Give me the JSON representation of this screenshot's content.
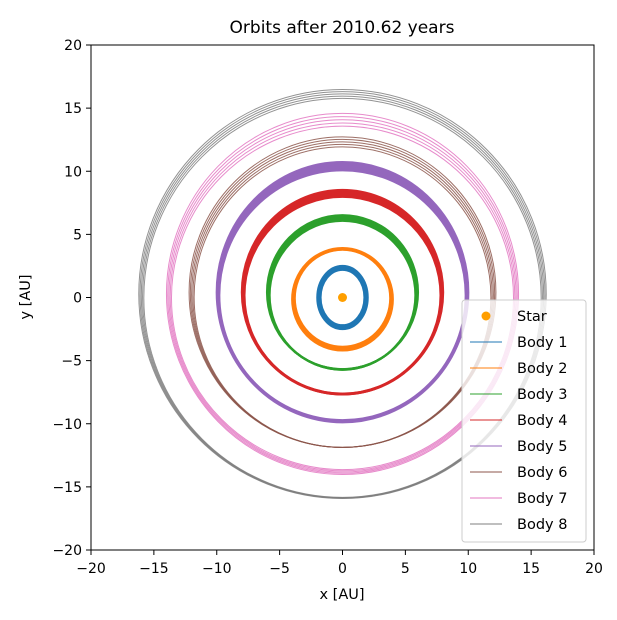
{
  "chart_data": {
    "type": "line",
    "title": "Orbits after 2010.62 years",
    "xlabel": "x [AU]",
    "ylabel": "y [AU]",
    "xlim": [
      -20,
      20
    ],
    "ylim": [
      -20,
      20
    ],
    "xticks": [
      -20,
      -15,
      -10,
      -5,
      0,
      5,
      10,
      15,
      20
    ],
    "yticks": [
      -20,
      -15,
      -10,
      -5,
      0,
      5,
      10,
      15,
      20
    ],
    "tick_labels": [
      "−20",
      "−15",
      "−10",
      "−5",
      "0",
      "5",
      "10",
      "15",
      "20"
    ],
    "grid": false,
    "legend_position": "lower-right",
    "star": {
      "name": "Star",
      "x": 0,
      "y": 0,
      "color": "#ff9f00"
    },
    "series": [
      {
        "name": "Body 1",
        "color": "#1f77b4",
        "rx": [
          1.75,
          2.0
        ],
        "ry": [
          2.2,
          2.5
        ],
        "cy": 0.0,
        "cx": 0.0,
        "width": 5.5
      },
      {
        "name": "Body 2",
        "color": "#ff7f0e",
        "rx": [
          3.8,
          4.0
        ],
        "ry": [
          3.85,
          4.05
        ],
        "cy": -0.1,
        "cx": 0.0,
        "width": 5.5
      },
      {
        "name": "Body 3",
        "color": "#2ca02c",
        "rx": [
          5.8,
          6.0
        ],
        "ry": [
          5.9,
          6.1
        ],
        "cy": 0.3,
        "cx": 0.0,
        "width": 6
      },
      {
        "name": "Body 4",
        "color": "#d62728",
        "rx": [
          7.8,
          8.0
        ],
        "ry": [
          7.8,
          8.1
        ],
        "cy": 0.3,
        "cx": 0.0,
        "width": 6
      },
      {
        "name": "Body 5",
        "color": "#9467bd",
        "rx": [
          9.8,
          10.0
        ],
        "ry": [
          9.9,
          10.3
        ],
        "cy": 0.3,
        "cx": 0.0,
        "width": 5.5
      },
      {
        "name": "Body 6",
        "color": "#8c564b",
        "rx": [
          11.8,
          12.2
        ],
        "ry": [
          11.9,
          12.3
        ],
        "cy": 0.3,
        "cx": 0.0,
        "width": 1
      },
      {
        "name": "Body 7",
        "color": "#e377c2",
        "rx": [
          13.6,
          14.0
        ],
        "ry": [
          13.6,
          14.3
        ],
        "cy": 0.2,
        "cx": 0.0,
        "width": 1
      },
      {
        "name": "Body 8",
        "color": "#7f7f7f",
        "rx": [
          15.8,
          16.2
        ],
        "ry": [
          15.8,
          16.2
        ],
        "cy": 0.2,
        "cx": 0.0,
        "width": 1
      }
    ]
  }
}
